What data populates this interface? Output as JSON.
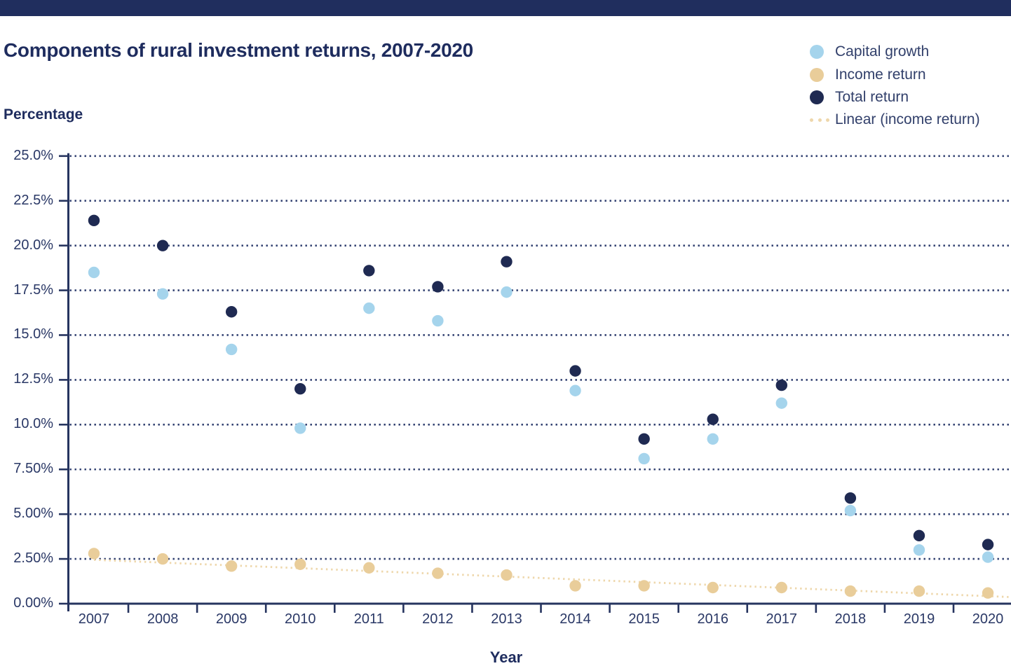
{
  "header": {
    "title": "Components of rural investment returns, 2007-2020"
  },
  "legend": {
    "items": [
      {
        "label": "Capital growth",
        "color": "#a5d4ec",
        "swatch": "dot"
      },
      {
        "label": "Income return",
        "color": "#e9cd9a",
        "swatch": "dot"
      },
      {
        "label": "Total return",
        "color": "#1f2a52",
        "swatch": "dot"
      },
      {
        "label": "Linear (income return)",
        "color": "#eed7ab",
        "swatch": "dotted-line"
      }
    ]
  },
  "chart_data": {
    "type": "scatter",
    "title": "Components of rural investment returns, 2007-2020",
    "xlabel": "Year",
    "ylabel": "Percentage",
    "x": [
      2007,
      2008,
      2009,
      2010,
      2011,
      2012,
      2013,
      2014,
      2015,
      2016,
      2017,
      2018,
      2019,
      2020
    ],
    "series": [
      {
        "name": "Capital growth",
        "color": "#a5d4ec",
        "values": [
          18.5,
          17.3,
          14.2,
          9.8,
          16.5,
          15.8,
          17.4,
          11.9,
          8.1,
          9.2,
          11.2,
          5.2,
          3.0,
          2.6
        ]
      },
      {
        "name": "Income return",
        "color": "#e9cd9a",
        "values": [
          2.8,
          2.5,
          2.1,
          2.2,
          2.0,
          1.7,
          1.6,
          1.0,
          1.0,
          0.9,
          0.9,
          0.7,
          0.7,
          0.6
        ]
      },
      {
        "name": "Total return",
        "color": "#1f2a52",
        "values": [
          21.4,
          20.0,
          16.3,
          12.0,
          18.6,
          17.7,
          19.1,
          13.0,
          9.2,
          10.3,
          12.2,
          5.9,
          3.8,
          3.3
        ]
      }
    ],
    "trend": {
      "name": "Linear (income return)",
      "color": "#eed7ab",
      "style": "dotted",
      "start_value": 2.45,
      "end_value": 0.42
    },
    "ylim": [
      0,
      25
    ],
    "yticks": [
      {
        "value": 25,
        "label": "25.0%"
      },
      {
        "value": 22.5,
        "label": "22.5%"
      },
      {
        "value": 20,
        "label": "20.0%"
      },
      {
        "value": 17.5,
        "label": "17.5%"
      },
      {
        "value": 15,
        "label": "15.0%"
      },
      {
        "value": 12.5,
        "label": "12.5%"
      },
      {
        "value": 10,
        "label": "10.0%"
      },
      {
        "value": 7.5,
        "label": "7.50%"
      },
      {
        "value": 5,
        "label": "5.00%"
      },
      {
        "value": 2.5,
        "label": "2.50%"
      },
      {
        "value": 0,
        "label": "0.00%"
      }
    ],
    "grid": "horizontal-dotted",
    "legend_position": "top-right"
  },
  "colors": {
    "accent_bar": "#202e5e",
    "title_text": "#1e2c5e",
    "axis": "#26345f",
    "axis_label_text": "#2a3866",
    "gridline": "#2e3d6e",
    "legend_text": "#32406b"
  }
}
